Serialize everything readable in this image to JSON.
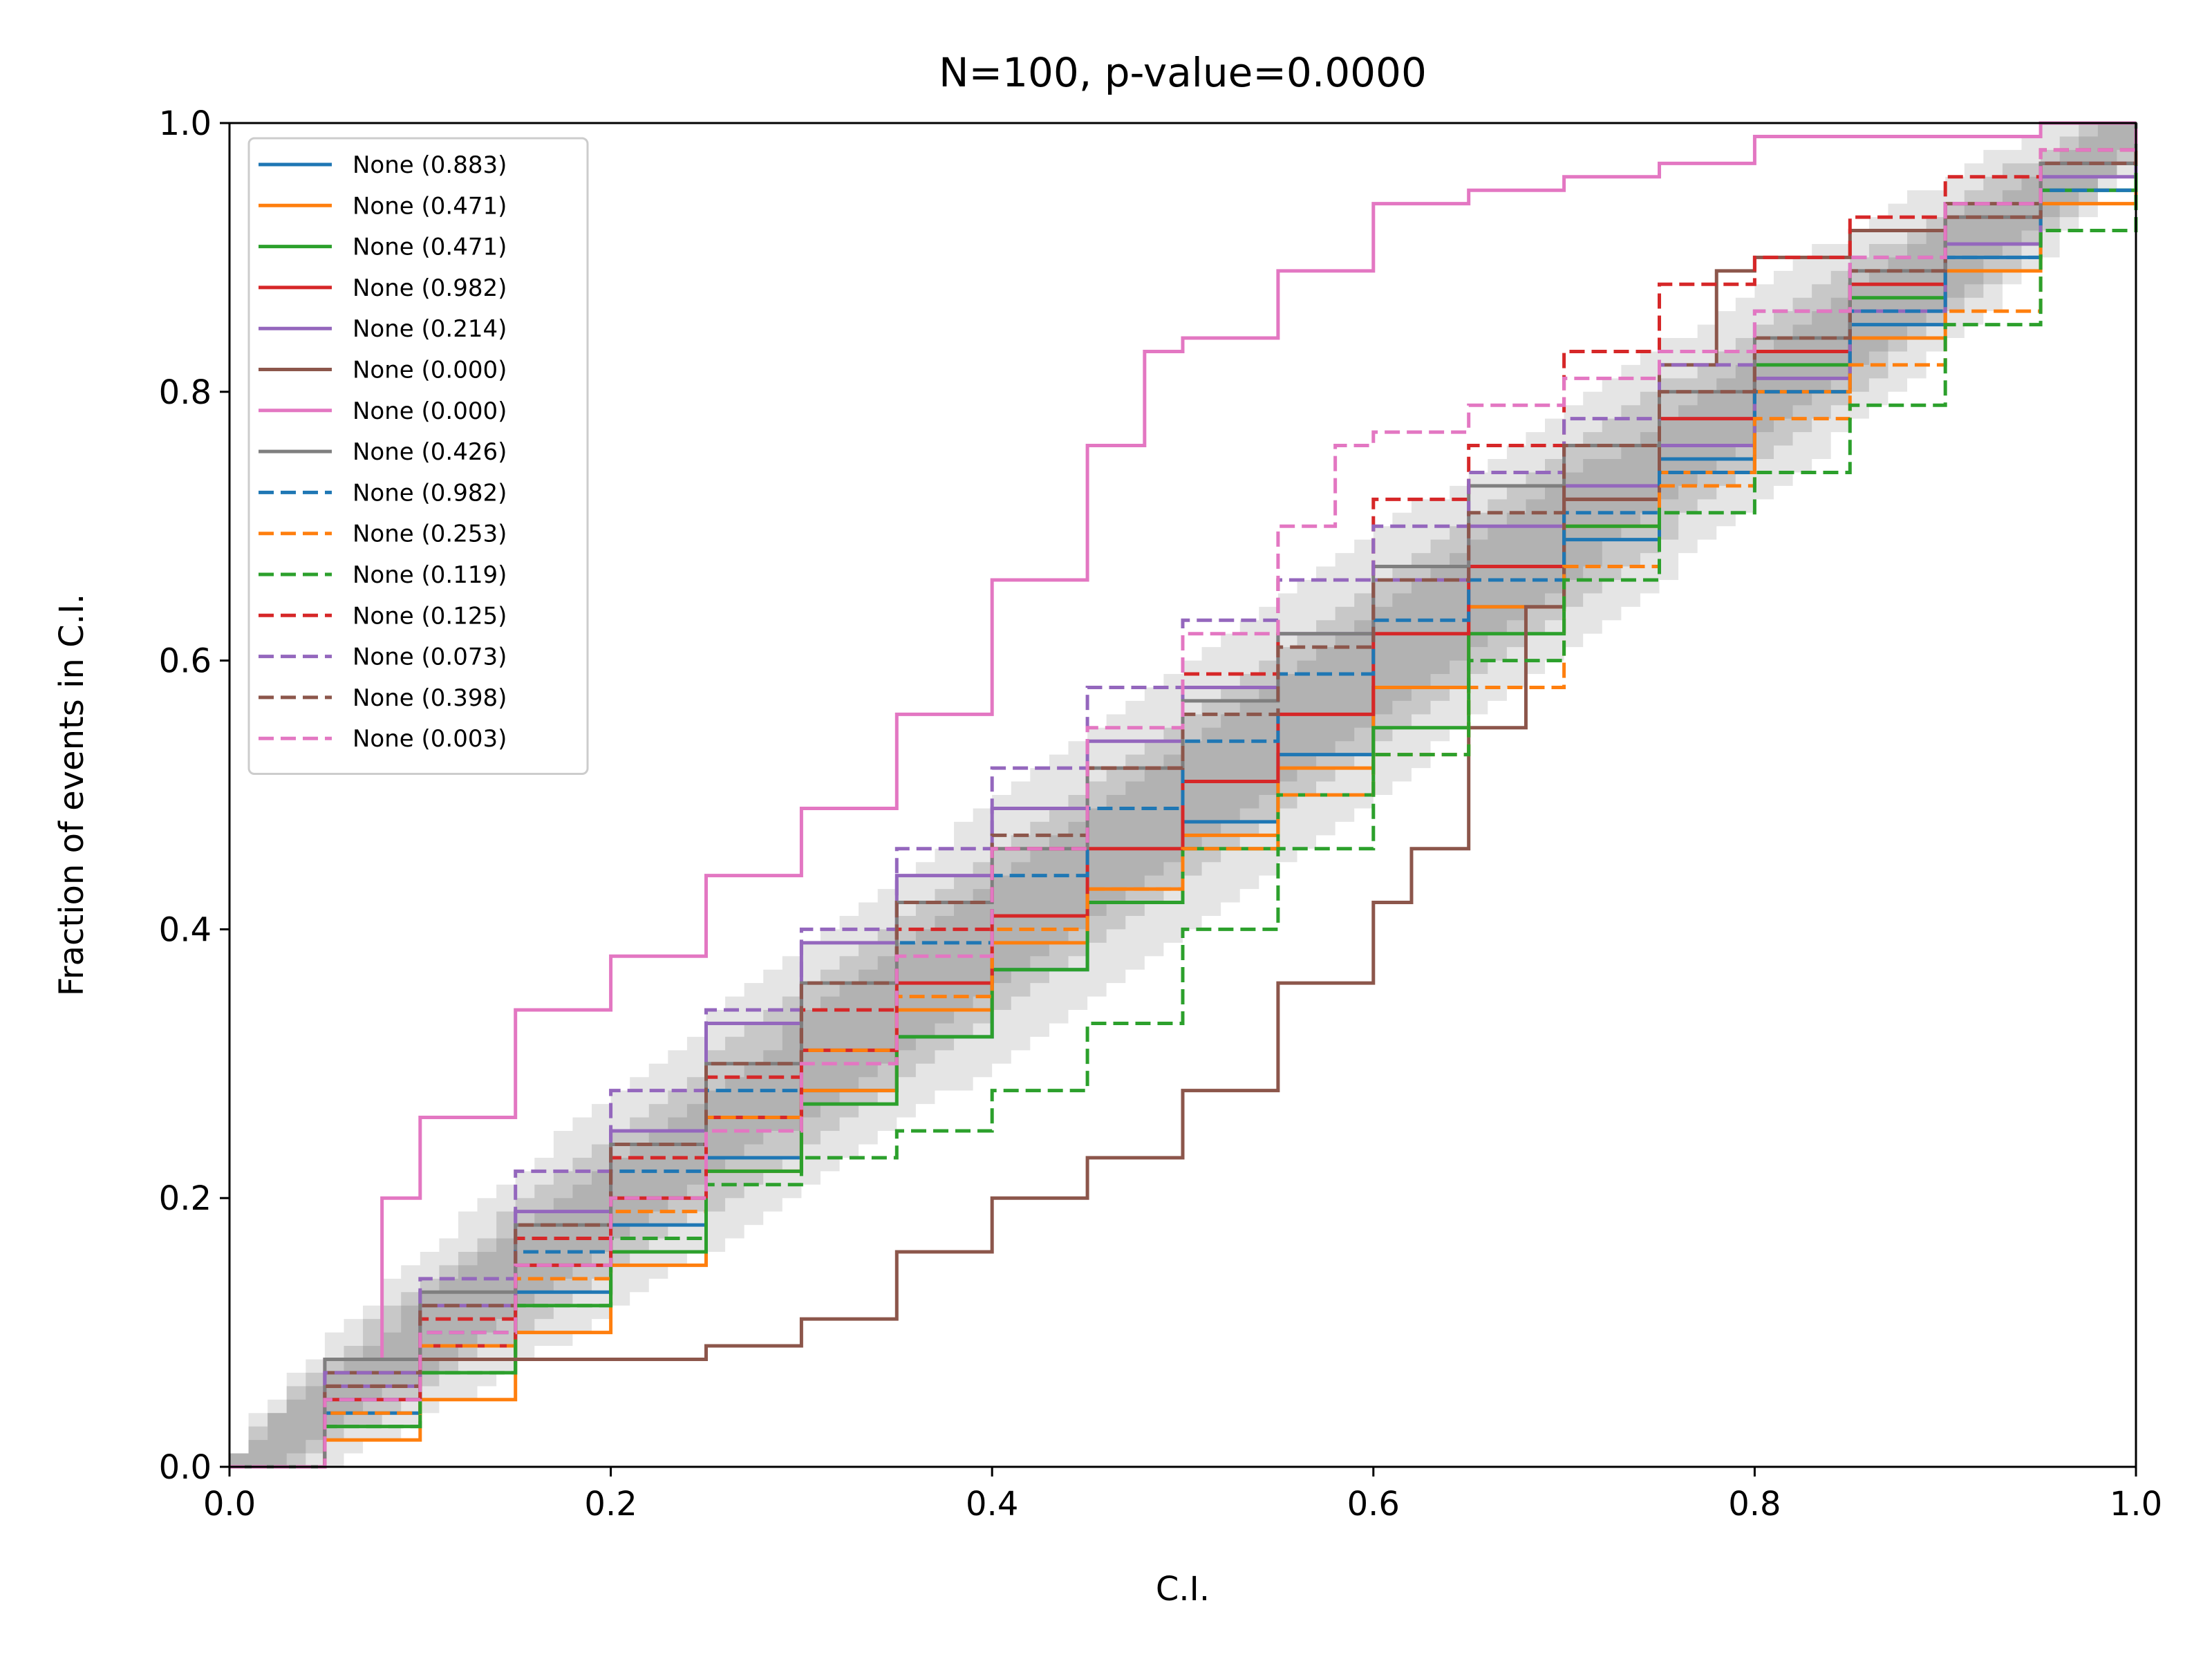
{
  "chart_data": {
    "type": "line",
    "title": "N=100, p-value=0.0000",
    "xlabel": "C.I.",
    "ylabel": "Fraction of events in C.I.",
    "xlim": [
      0,
      1
    ],
    "ylim": [
      0,
      1
    ],
    "xticks": [
      "0.0",
      "0.2",
      "0.4",
      "0.6",
      "0.8",
      "1.0"
    ],
    "yticks": [
      "0.0",
      "0.2",
      "0.4",
      "0.6",
      "0.8",
      "1.0"
    ],
    "grid": false,
    "legend_position": "upper-left",
    "confidence_bands": [
      {
        "label": "",
        "color": "#e5e5e5",
        "half_width": 0.09
      },
      {
        "label": "",
        "color": "#c8c8c8",
        "half_width": 0.055
      },
      {
        "label": "",
        "color": "#b2b2b2",
        "half_width": 0.03
      }
    ],
    "series": [
      {
        "name": "None (0.883)",
        "color": "#1f77b4",
        "dash": false,
        "x": [
          0,
          0.05,
          0.1,
          0.15,
          0.2,
          0.25,
          0.3,
          0.35,
          0.4,
          0.45,
          0.5,
          0.55,
          0.6,
          0.65,
          0.7,
          0.75,
          0.8,
          0.85,
          0.9,
          0.95,
          1.0
        ],
        "y": [
          0,
          0.04,
          0.08,
          0.13,
          0.18,
          0.23,
          0.28,
          0.32,
          0.37,
          0.42,
          0.48,
          0.53,
          0.58,
          0.64,
          0.69,
          0.75,
          0.8,
          0.85,
          0.9,
          0.95,
          1.0
        ]
      },
      {
        "name": "None (0.471)",
        "color": "#ff7f0e",
        "dash": false,
        "x": [
          0,
          0.05,
          0.1,
          0.15,
          0.2,
          0.25,
          0.3,
          0.35,
          0.4,
          0.45,
          0.5,
          0.55,
          0.6,
          0.65,
          0.7,
          0.75,
          0.8,
          0.85,
          0.9,
          0.95,
          1.0
        ],
        "y": [
          0,
          0.02,
          0.05,
          0.1,
          0.15,
          0.22,
          0.28,
          0.34,
          0.39,
          0.43,
          0.47,
          0.52,
          0.58,
          0.64,
          0.7,
          0.74,
          0.8,
          0.84,
          0.89,
          0.94,
          1.0
        ]
      },
      {
        "name": "None (0.471)",
        "color": "#2ca02c",
        "dash": false,
        "x": [
          0,
          0.05,
          0.1,
          0.15,
          0.2,
          0.25,
          0.3,
          0.35,
          0.4,
          0.45,
          0.5,
          0.55,
          0.6,
          0.65,
          0.7,
          0.75,
          0.8,
          0.85,
          0.9,
          0.95,
          1.0
        ],
        "y": [
          0,
          0.03,
          0.07,
          0.12,
          0.16,
          0.22,
          0.27,
          0.32,
          0.37,
          0.42,
          0.46,
          0.5,
          0.55,
          0.62,
          0.7,
          0.76,
          0.82,
          0.87,
          0.91,
          0.95,
          1.0
        ]
      },
      {
        "name": "None (0.982)",
        "color": "#d62728",
        "dash": false,
        "x": [
          0,
          0.05,
          0.1,
          0.15,
          0.2,
          0.25,
          0.3,
          0.35,
          0.4,
          0.45,
          0.5,
          0.55,
          0.6,
          0.65,
          0.7,
          0.75,
          0.8,
          0.85,
          0.9,
          0.95,
          1.0
        ],
        "y": [
          0,
          0.05,
          0.09,
          0.15,
          0.2,
          0.26,
          0.31,
          0.36,
          0.41,
          0.46,
          0.51,
          0.56,
          0.62,
          0.67,
          0.72,
          0.78,
          0.83,
          0.88,
          0.93,
          0.97,
          1.0
        ]
      },
      {
        "name": "None (0.214)",
        "color": "#9467bd",
        "dash": false,
        "x": [
          0,
          0.05,
          0.1,
          0.15,
          0.2,
          0.25,
          0.3,
          0.35,
          0.4,
          0.45,
          0.5,
          0.55,
          0.6,
          0.65,
          0.7,
          0.75,
          0.8,
          0.85,
          0.9,
          0.95,
          1.0
        ],
        "y": [
          0,
          0.06,
          0.12,
          0.19,
          0.25,
          0.33,
          0.39,
          0.44,
          0.49,
          0.54,
          0.58,
          0.62,
          0.66,
          0.7,
          0.73,
          0.76,
          0.81,
          0.86,
          0.91,
          0.96,
          1.0
        ]
      },
      {
        "name": "None (0.000)",
        "color": "#8c564b",
        "dash": false,
        "x": [
          0,
          0.05,
          0.1,
          0.15,
          0.2,
          0.25,
          0.3,
          0.35,
          0.4,
          0.45,
          0.5,
          0.55,
          0.6,
          0.62,
          0.65,
          0.68,
          0.7,
          0.75,
          0.78,
          0.8,
          0.85,
          0.9,
          0.95,
          1.0
        ],
        "y": [
          0,
          0.07,
          0.08,
          0.08,
          0.08,
          0.09,
          0.11,
          0.16,
          0.2,
          0.23,
          0.28,
          0.36,
          0.42,
          0.46,
          0.55,
          0.64,
          0.72,
          0.82,
          0.89,
          0.9,
          0.92,
          0.94,
          0.97,
          1.0
        ]
      },
      {
        "name": "None (0.000)",
        "color": "#e377c2",
        "dash": false,
        "x": [
          0,
          0.05,
          0.08,
          0.1,
          0.15,
          0.2,
          0.25,
          0.3,
          0.35,
          0.4,
          0.45,
          0.48,
          0.5,
          0.55,
          0.6,
          0.65,
          0.7,
          0.75,
          0.8,
          0.85,
          0.9,
          0.95,
          1.0
        ],
        "y": [
          0,
          0.08,
          0.2,
          0.26,
          0.34,
          0.38,
          0.44,
          0.49,
          0.56,
          0.66,
          0.76,
          0.83,
          0.84,
          0.89,
          0.94,
          0.95,
          0.96,
          0.97,
          0.99,
          0.99,
          0.99,
          1.0,
          1.0
        ]
      },
      {
        "name": "None (0.426)",
        "color": "#7f7f7f",
        "dash": false,
        "x": [
          0,
          0.05,
          0.1,
          0.15,
          0.2,
          0.25,
          0.3,
          0.35,
          0.4,
          0.45,
          0.5,
          0.55,
          0.6,
          0.65,
          0.7,
          0.75,
          0.8,
          0.85,
          0.9,
          0.95,
          1.0
        ],
        "y": [
          0,
          0.08,
          0.13,
          0.18,
          0.24,
          0.3,
          0.36,
          0.42,
          0.46,
          0.52,
          0.57,
          0.62,
          0.67,
          0.73,
          0.76,
          0.8,
          0.84,
          0.89,
          0.93,
          0.97,
          1.0
        ]
      },
      {
        "name": "None (0.982)",
        "color": "#1f77b4",
        "dash": true,
        "x": [
          0,
          0.05,
          0.1,
          0.15,
          0.2,
          0.25,
          0.3,
          0.35,
          0.4,
          0.45,
          0.5,
          0.55,
          0.6,
          0.65,
          0.7,
          0.75,
          0.8,
          0.85,
          0.9,
          0.95,
          1.0
        ],
        "y": [
          0,
          0.05,
          0.1,
          0.16,
          0.22,
          0.28,
          0.34,
          0.39,
          0.44,
          0.49,
          0.54,
          0.59,
          0.63,
          0.66,
          0.71,
          0.74,
          0.8,
          0.86,
          0.9,
          0.95,
          1.0
        ]
      },
      {
        "name": "None (0.253)",
        "color": "#ff7f0e",
        "dash": true,
        "x": [
          0,
          0.05,
          0.1,
          0.15,
          0.2,
          0.25,
          0.3,
          0.35,
          0.4,
          0.45,
          0.5,
          0.55,
          0.6,
          0.65,
          0.7,
          0.75,
          0.8,
          0.85,
          0.9,
          0.95,
          1.0
        ],
        "y": [
          0,
          0.04,
          0.09,
          0.14,
          0.19,
          0.26,
          0.31,
          0.35,
          0.4,
          0.43,
          0.46,
          0.5,
          0.53,
          0.58,
          0.67,
          0.73,
          0.78,
          0.82,
          0.86,
          0.92,
          1.0
        ]
      },
      {
        "name": "None (0.119)",
        "color": "#2ca02c",
        "dash": true,
        "x": [
          0,
          0.05,
          0.1,
          0.15,
          0.2,
          0.25,
          0.3,
          0.35,
          0.4,
          0.45,
          0.5,
          0.55,
          0.6,
          0.65,
          0.7,
          0.75,
          0.8,
          0.85,
          0.9,
          0.95,
          1.0
        ],
        "y": [
          0,
          0.03,
          0.07,
          0.12,
          0.17,
          0.21,
          0.23,
          0.25,
          0.28,
          0.33,
          0.4,
          0.46,
          0.53,
          0.6,
          0.66,
          0.71,
          0.74,
          0.79,
          0.85,
          0.92,
          1.0
        ]
      },
      {
        "name": "None (0.125)",
        "color": "#d62728",
        "dash": true,
        "x": [
          0,
          0.05,
          0.1,
          0.15,
          0.2,
          0.25,
          0.3,
          0.35,
          0.4,
          0.45,
          0.5,
          0.55,
          0.6,
          0.65,
          0.7,
          0.75,
          0.8,
          0.85,
          0.9,
          0.95,
          1.0
        ],
        "y": [
          0,
          0.06,
          0.11,
          0.17,
          0.23,
          0.29,
          0.34,
          0.4,
          0.46,
          0.52,
          0.59,
          0.66,
          0.72,
          0.76,
          0.83,
          0.88,
          0.9,
          0.93,
          0.96,
          0.98,
          1.0
        ]
      },
      {
        "name": "None (0.073)",
        "color": "#9467bd",
        "dash": true,
        "x": [
          0,
          0.05,
          0.1,
          0.15,
          0.2,
          0.25,
          0.3,
          0.35,
          0.4,
          0.45,
          0.5,
          0.55,
          0.6,
          0.65,
          0.7,
          0.75,
          0.8,
          0.85,
          0.9,
          0.95,
          1.0
        ],
        "y": [
          0,
          0.07,
          0.14,
          0.22,
          0.28,
          0.34,
          0.4,
          0.46,
          0.52,
          0.58,
          0.63,
          0.66,
          0.7,
          0.74,
          0.78,
          0.82,
          0.86,
          0.9,
          0.94,
          0.97,
          1.0
        ]
      },
      {
        "name": "None (0.398)",
        "color": "#8c564b",
        "dash": true,
        "x": [
          0,
          0.05,
          0.1,
          0.15,
          0.2,
          0.25,
          0.3,
          0.35,
          0.4,
          0.45,
          0.5,
          0.55,
          0.6,
          0.65,
          0.7,
          0.75,
          0.8,
          0.85,
          0.9,
          0.95,
          1.0
        ],
        "y": [
          0,
          0.06,
          0.12,
          0.18,
          0.24,
          0.3,
          0.36,
          0.42,
          0.47,
          0.52,
          0.56,
          0.61,
          0.66,
          0.71,
          0.76,
          0.8,
          0.84,
          0.89,
          0.93,
          0.97,
          1.0
        ]
      },
      {
        "name": "None (0.003)",
        "color": "#e377c2",
        "dash": true,
        "x": [
          0,
          0.05,
          0.1,
          0.15,
          0.2,
          0.25,
          0.3,
          0.35,
          0.4,
          0.45,
          0.5,
          0.55,
          0.58,
          0.6,
          0.65,
          0.7,
          0.75,
          0.8,
          0.85,
          0.9,
          0.95,
          1.0
        ],
        "y": [
          0,
          0.05,
          0.1,
          0.15,
          0.2,
          0.25,
          0.3,
          0.38,
          0.46,
          0.55,
          0.62,
          0.7,
          0.76,
          0.77,
          0.79,
          0.81,
          0.83,
          0.86,
          0.9,
          0.94,
          0.98,
          1.0
        ]
      }
    ]
  }
}
